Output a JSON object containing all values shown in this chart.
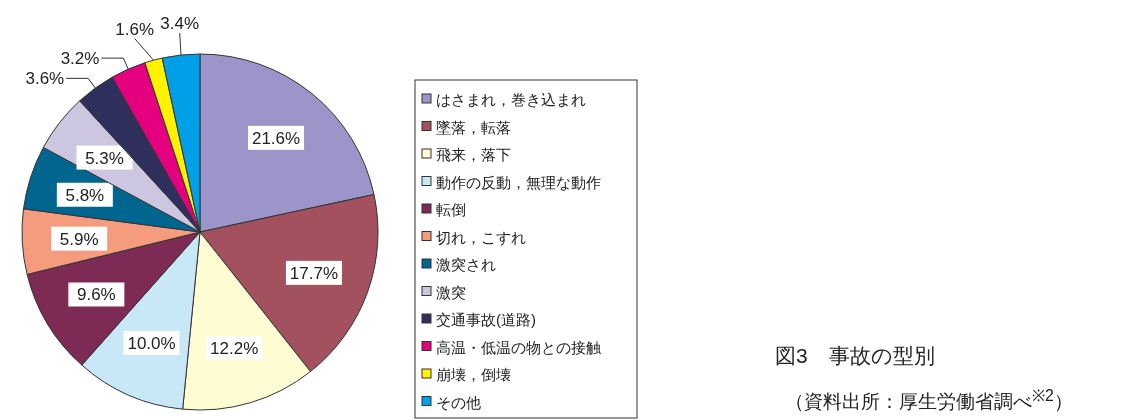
{
  "chart_data": {
    "type": "pie",
    "title": "図3　事故の型別",
    "annotations": [
      "（資料出所：厚生労働省調べ$^{※2}$）"
    ],
    "categories": [
      "はさまれ，巻き込まれ",
      "墜落，転落",
      "飛来，落下",
      "動作の反動，無理な動作",
      "転倒",
      "切れ，こすれ",
      "激突され",
      "激突",
      "交通事故(道路)",
      "高温・低温の物との接触",
      "崩壊，倒壊",
      "その他"
    ],
    "values": [
      21.6,
      17.7,
      12.2,
      10.0,
      9.6,
      5.9,
      5.8,
      5.3,
      3.6,
      3.2,
      1.6,
      3.4
    ],
    "value_labels": [
      "21.6%",
      "17.7%",
      "12.2%",
      "10.0%",
      "9.6%",
      "5.9%",
      "5.8%",
      "5.3%",
      "3.6%",
      "3.2%",
      "1.6%",
      "3.4%"
    ],
    "colors": [
      "#9b95c9",
      "#a3515e",
      "#fffbd2",
      "#c8e8f8",
      "#7d2a55",
      "#f59c7e",
      "#00658f",
      "#cdc6e0",
      "#2f2f5e",
      "#e4007f",
      "#fff100",
      "#00a0e9"
    ],
    "legend": "right"
  }
}
